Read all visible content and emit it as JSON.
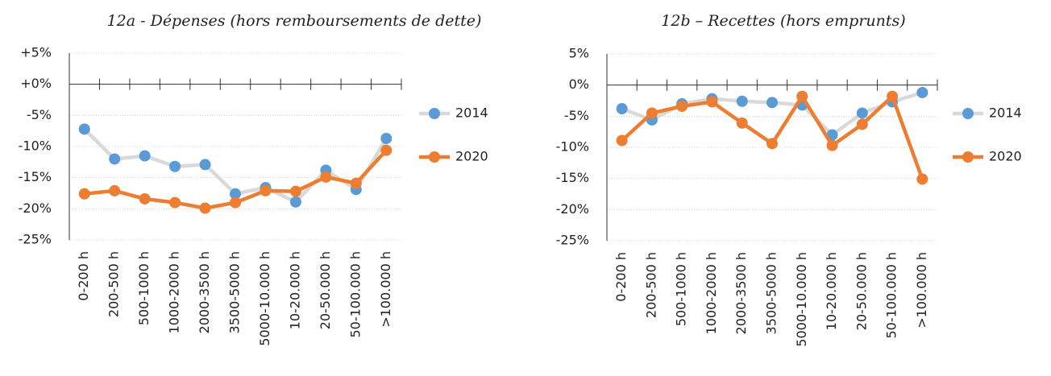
{
  "chart_data": [
    {
      "type": "line",
      "title": "12a - Dépenses  (hors remboursements de dette)",
      "categories": [
        "0-200 h",
        "200-500 h",
        "500-1000 h",
        "1000-2000 h",
        "2000-3500 h",
        "3500-5000 h",
        "5000-10.000 h",
        "10-20.000 h",
        "20-50.000 h",
        "50-100.000 h",
        ">100.000 h"
      ],
      "series": [
        {
          "name": "2014",
          "color": "#d9d9d9",
          "marker_color": "#5b9bd5",
          "values": [
            -7.2,
            -12.0,
            -11.5,
            -13.2,
            -12.9,
            -17.6,
            -16.6,
            -18.9,
            -13.8,
            -16.9,
            -8.7
          ]
        },
        {
          "name": "2020",
          "color": "#ed7d31",
          "marker_color": "#ed7d31",
          "values": [
            -17.6,
            -17.1,
            -18.4,
            -19.0,
            -19.9,
            -19.0,
            -17.1,
            -17.2,
            -14.9,
            -15.9,
            -10.6
          ]
        }
      ],
      "ylim": [
        -25,
        5
      ],
      "yticks": [
        {
          "value": 5,
          "label": "+5%"
        },
        {
          "value": 0,
          "label": "+0%"
        },
        {
          "value": -5,
          "label": "-5%"
        },
        {
          "value": -10,
          "label": "-10%"
        },
        {
          "value": -15,
          "label": "-15%"
        },
        {
          "value": -20,
          "label": "-20%"
        },
        {
          "value": -25,
          "label": "-25%"
        }
      ],
      "grid": true,
      "legend": "right"
    },
    {
      "type": "line",
      "title": "12b – Recettes (hors emprunts)",
      "categories": [
        "0-200 h",
        "200-500 h",
        "500-1000 h",
        "1000-2000 h",
        "2000-3500 h",
        "3500-5000 h",
        "5000-10.000 h",
        "10-20.000 h",
        "20-50.000 h",
        "50-100.000 h",
        ">100.000 h"
      ],
      "series": [
        {
          "name": "2014",
          "color": "#d9d9d9",
          "marker_color": "#5b9bd5",
          "values": [
            -3.8,
            -5.6,
            -3.0,
            -2.2,
            -2.6,
            -2.8,
            -3.2,
            -8.0,
            -4.5,
            -2.7,
            -1.2
          ]
        },
        {
          "name": "2020",
          "color": "#ed7d31",
          "marker_color": "#ed7d31",
          "values": [
            -8.9,
            -4.5,
            -3.4,
            -2.7,
            -6.1,
            -9.4,
            -1.8,
            -9.7,
            -6.3,
            -1.8,
            -15.1
          ]
        }
      ],
      "ylim": [
        -25,
        5
      ],
      "yticks": [
        {
          "value": 5,
          "label": "5%"
        },
        {
          "value": 0,
          "label": "0%"
        },
        {
          "value": -5,
          "label": "-5%"
        },
        {
          "value": -10,
          "label": "-10%"
        },
        {
          "value": -15,
          "label": "-15%"
        },
        {
          "value": -20,
          "label": "-20%"
        },
        {
          "value": -25,
          "label": "-25%"
        }
      ],
      "grid": true,
      "legend": "right"
    }
  ]
}
